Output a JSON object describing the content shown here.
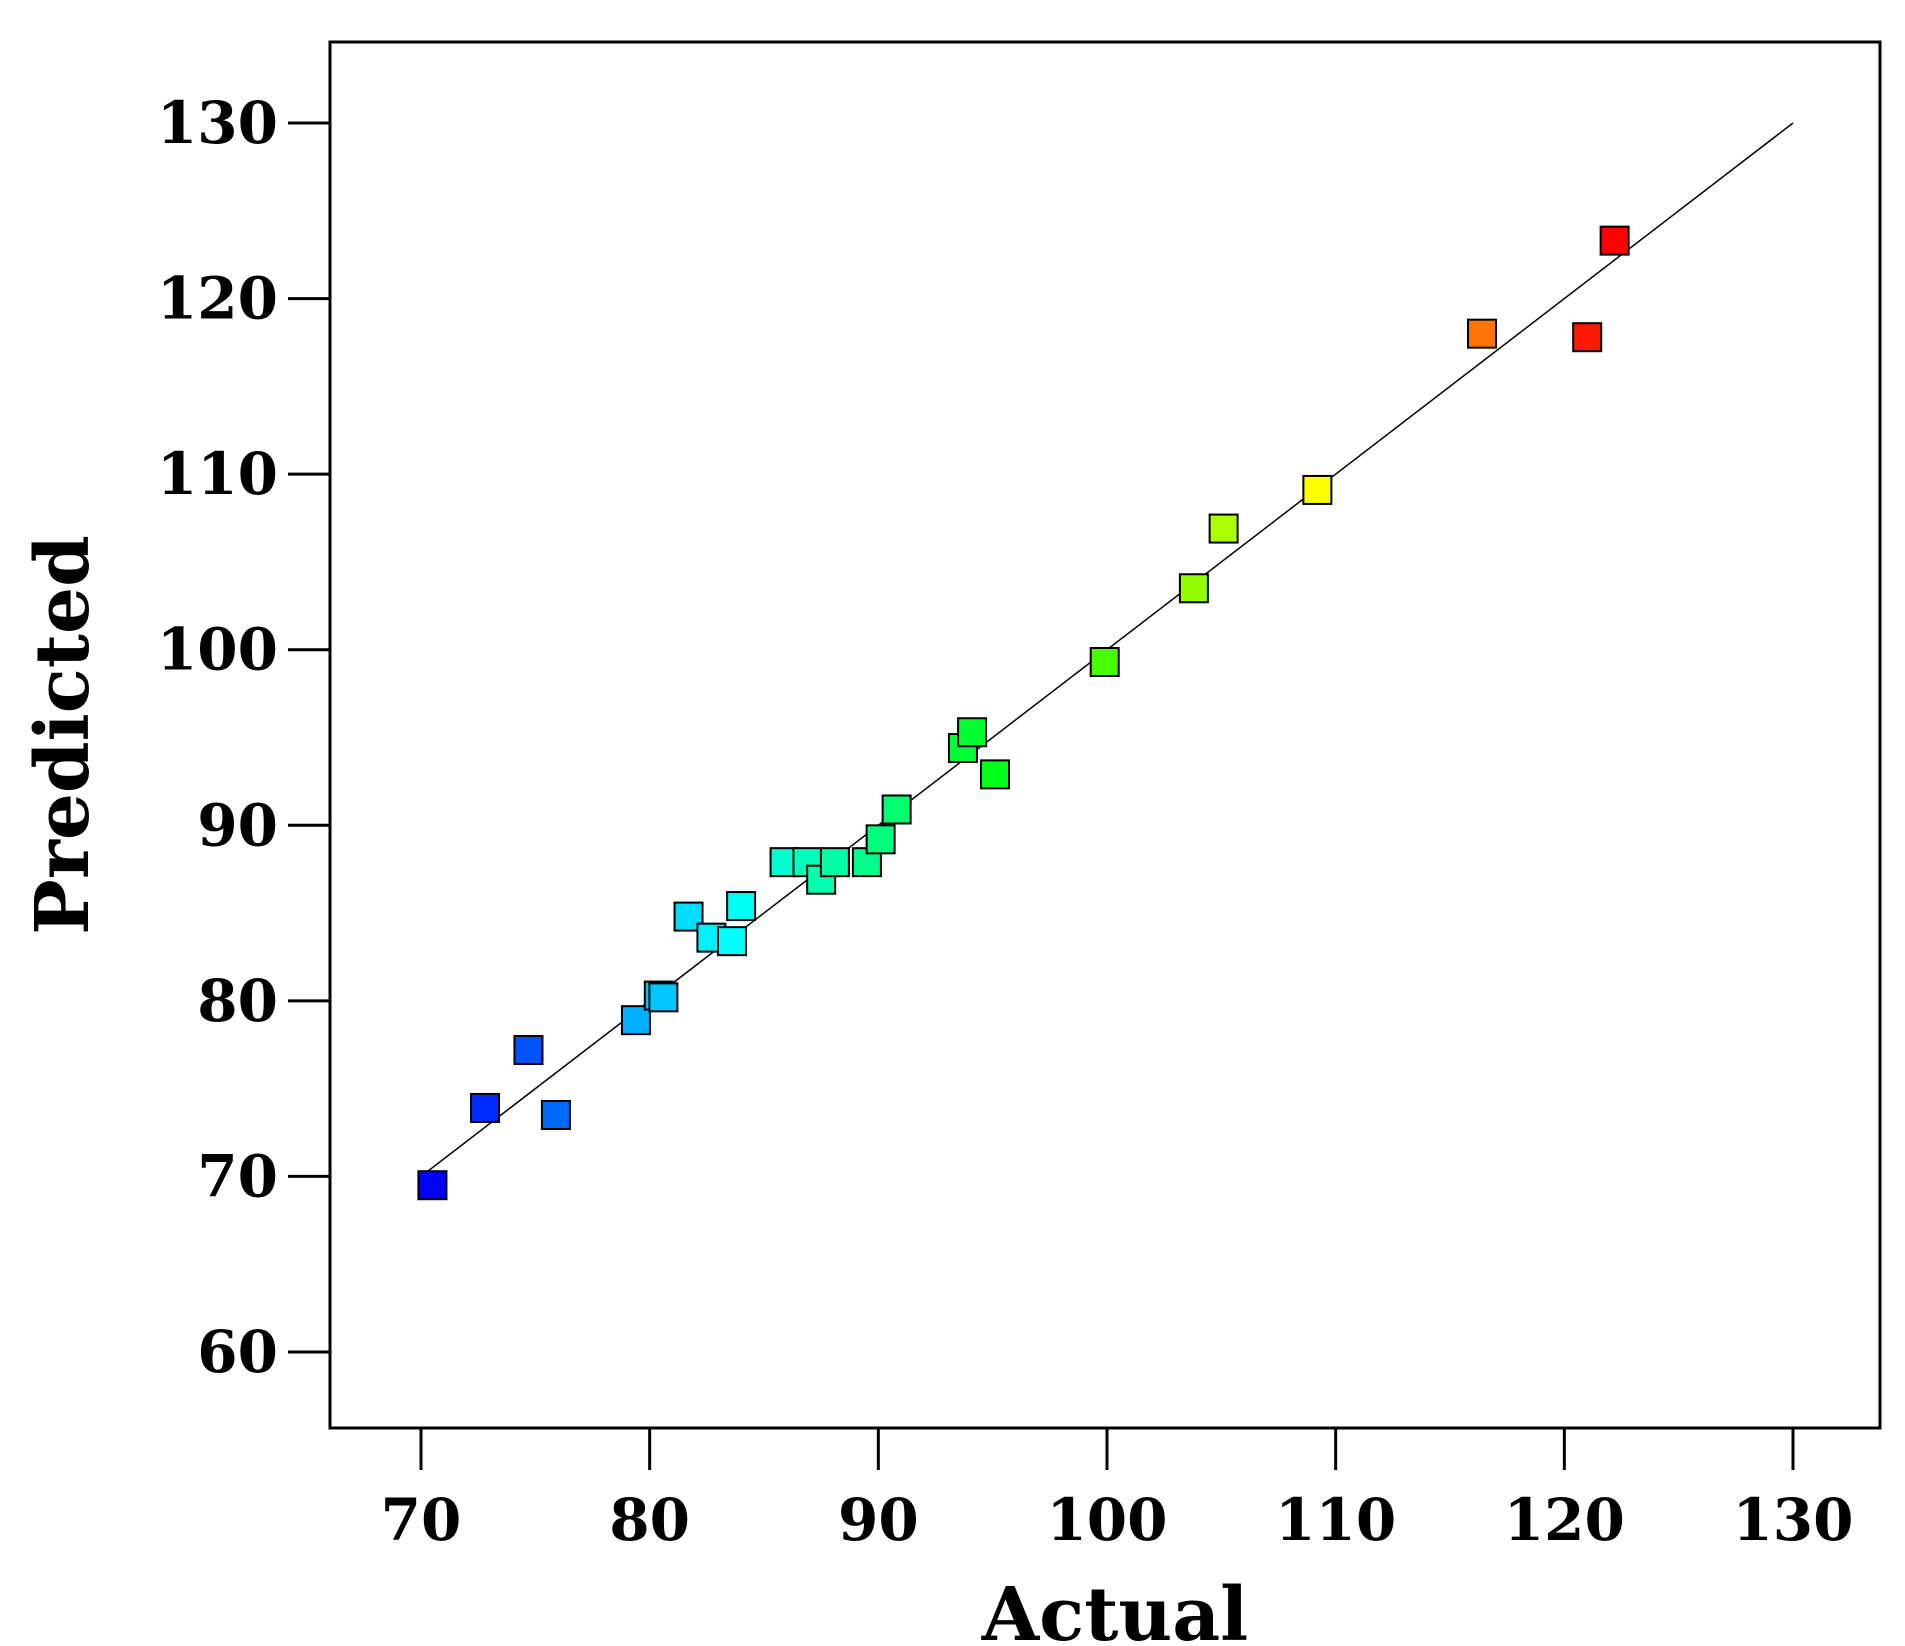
{
  "chart_data": {
    "type": "scatter",
    "title": "",
    "xlabel": "Actual",
    "ylabel": "Predicted",
    "xlim": [
      66,
      134
    ],
    "ylim": [
      55,
      135
    ],
    "x_ticks": [
      70,
      80,
      90,
      100,
      110,
      120,
      130
    ],
    "y_ticks": [
      60,
      70,
      80,
      90,
      100,
      110,
      120,
      130
    ],
    "grid": false,
    "legend": "none",
    "reference_line": {
      "from": [
        70,
        70
      ],
      "to": [
        130,
        130
      ],
      "color": "#000000"
    },
    "marker": "square",
    "color_scale": {
      "type": "rainbow",
      "low": "#0000ff",
      "high": "#ff0000",
      "range": [
        70.5,
        122.3
      ]
    },
    "points": [
      {
        "x": 70.5,
        "y": 69.5
      },
      {
        "x": 72.8,
        "y": 73.9
      },
      {
        "x": 74.7,
        "y": 77.2
      },
      {
        "x": 75.9,
        "y": 73.5
      },
      {
        "x": 79.4,
        "y": 78.9
      },
      {
        "x": 80.4,
        "y": 80.3
      },
      {
        "x": 80.6,
        "y": 80.2
      },
      {
        "x": 81.7,
        "y": 84.8
      },
      {
        "x": 82.7,
        "y": 83.6
      },
      {
        "x": 83.6,
        "y": 83.4
      },
      {
        "x": 84.0,
        "y": 85.4
      },
      {
        "x": 85.9,
        "y": 87.9
      },
      {
        "x": 86.9,
        "y": 87.9
      },
      {
        "x": 87.5,
        "y": 86.9
      },
      {
        "x": 88.1,
        "y": 87.9
      },
      {
        "x": 89.5,
        "y": 87.9
      },
      {
        "x": 90.1,
        "y": 89.2
      },
      {
        "x": 90.8,
        "y": 90.9
      },
      {
        "x": 93.7,
        "y": 94.4
      },
      {
        "x": 94.1,
        "y": 95.3
      },
      {
        "x": 95.1,
        "y": 92.9
      },
      {
        "x": 99.9,
        "y": 99.3
      },
      {
        "x": 103.8,
        "y": 103.5
      },
      {
        "x": 105.1,
        "y": 106.9
      },
      {
        "x": 109.2,
        "y": 109.1
      },
      {
        "x": 116.4,
        "y": 118.0
      },
      {
        "x": 121.0,
        "y": 117.8
      },
      {
        "x": 122.2,
        "y": 123.3
      }
    ]
  }
}
